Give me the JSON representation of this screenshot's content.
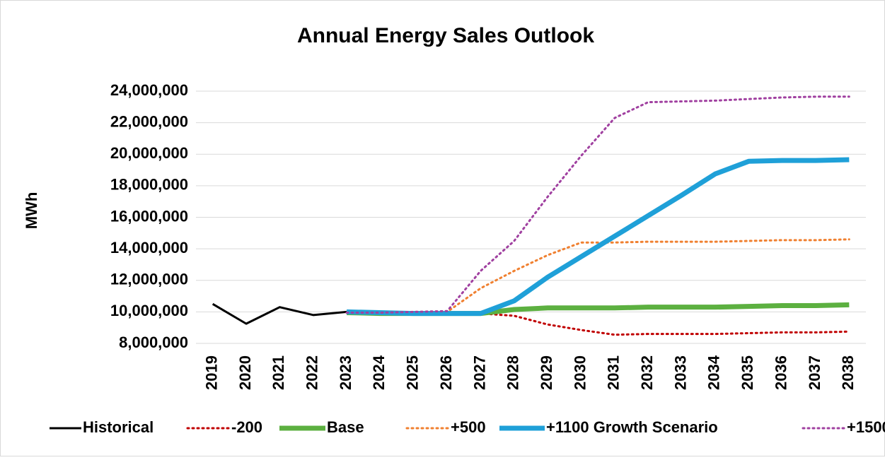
{
  "chart_data": {
    "type": "line",
    "title": "Annual Energy Sales Outlook",
    "ylabel": "MWh",
    "categories": [
      "2019",
      "2020",
      "2021",
      "2022",
      "2023",
      "2024",
      "2025",
      "2026",
      "2027",
      "2028",
      "2029",
      "2030",
      "2031",
      "2032",
      "2033",
      "2034",
      "2035",
      "2036",
      "2037",
      "2038"
    ],
    "ylim": [
      8000000,
      24000000
    ],
    "yticks": [
      {
        "value": 8000000,
        "label": "8,000,000"
      },
      {
        "value": 10000000,
        "label": "10,000,000"
      },
      {
        "value": 12000000,
        "label": "12,000,000"
      },
      {
        "value": 14000000,
        "label": "14,000,000"
      },
      {
        "value": 16000000,
        "label": "16,000,000"
      },
      {
        "value": 18000000,
        "label": "18,000,000"
      },
      {
        "value": 20000000,
        "label": "20,000,000"
      },
      {
        "value": 22000000,
        "label": "22,000,000"
      },
      {
        "value": 24000000,
        "label": "24,000,000"
      }
    ],
    "grid": true,
    "legend": "bottom",
    "series": [
      {
        "name": "Historical",
        "color": "#000000",
        "line_style": "solid",
        "values": [
          10500000,
          9250000,
          10300000,
          9800000,
          10000000,
          null,
          null,
          null,
          null,
          null,
          null,
          null,
          null,
          null,
          null,
          null,
          null,
          null,
          null,
          null
        ]
      },
      {
        "name": "-200",
        "color": "#c00000",
        "line_style": "dotted",
        "values": [
          null,
          null,
          null,
          null,
          9950000,
          9900000,
          9900000,
          9900000,
          9900000,
          9750000,
          9200000,
          8850000,
          8550000,
          8600000,
          8600000,
          8600000,
          8650000,
          8700000,
          8700000,
          8750000
        ]
      },
      {
        "name": "Base",
        "color": "#5cb040",
        "line_style": "thick",
        "values": [
          null,
          null,
          null,
          null,
          9950000,
          9900000,
          9900000,
          9900000,
          9900000,
          10150000,
          10250000,
          10250000,
          10250000,
          10300000,
          10300000,
          10300000,
          10350000,
          10400000,
          10400000,
          10450000
        ]
      },
      {
        "name": "+500",
        "color": "#f08030",
        "line_style": "dotted",
        "values": [
          null,
          null,
          null,
          null,
          9950000,
          9950000,
          9950000,
          10000000,
          11500000,
          12600000,
          13600000,
          14400000,
          14400000,
          14450000,
          14450000,
          14450000,
          14500000,
          14550000,
          14550000,
          14600000
        ]
      },
      {
        "name": "+1100 Growth Scenario",
        "color": "#1fa0d8",
        "line_style": "thick",
        "values": [
          null,
          null,
          null,
          null,
          10000000,
          9950000,
          9900000,
          9900000,
          9900000,
          10700000,
          12200000,
          13500000,
          14800000,
          16100000,
          17400000,
          18750000,
          19550000,
          19600000,
          19600000,
          19650000
        ]
      },
      {
        "name": "+1500",
        "color": "#a040a0",
        "line_style": "dotted",
        "values": [
          null,
          null,
          null,
          null,
          9950000,
          9950000,
          10000000,
          10050000,
          12600000,
          14500000,
          17300000,
          19900000,
          22300000,
          23300000,
          23350000,
          23400000,
          23500000,
          23600000,
          23650000,
          23650000
        ]
      }
    ]
  }
}
